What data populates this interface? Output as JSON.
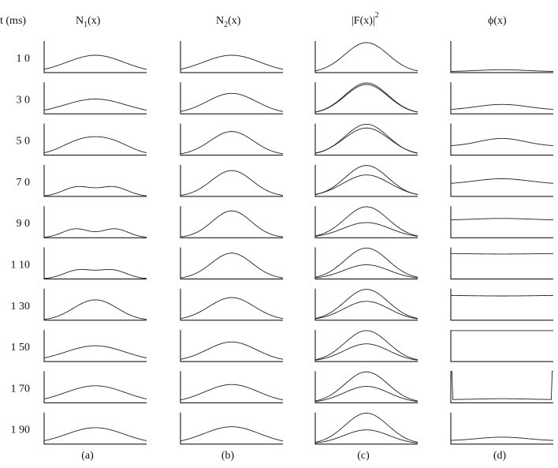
{
  "chart_data": {
    "type": "line",
    "layout": "small-multiples grid",
    "row_header": "t (ms)",
    "row_labels": [
      "1 0",
      "3 0",
      "5 0",
      "7 0",
      "9 0",
      "1 10",
      "1 30",
      "1 50",
      "1 70",
      "1 90"
    ],
    "columns": [
      {
        "title_base": "N",
        "title_sub": "1",
        "title_rest": "(x)",
        "panel_label": "(a)",
        "rows": [
          {
            "series": [
              {
                "profile": [
                  {
                    "a": 0.55,
                    "mu": 0,
                    "w": 0.55
                  }
                ]
              }
            ]
          },
          {
            "series": [
              {
                "profile": [
                  {
                    "a": 0.47,
                    "mu": 0,
                    "w": 0.6
                  }
                ]
              }
            ]
          },
          {
            "series": [
              {
                "profile": [
                  {
                    "a": 0.4,
                    "mu": -0.3,
                    "w": 0.38
                  },
                  {
                    "a": 0.4,
                    "mu": 0.3,
                    "w": 0.38
                  }
                ]
              }
            ]
          },
          {
            "series": [
              {
                "profile": [
                  {
                    "a": 0.3,
                    "mu": -0.35,
                    "w": 0.28
                  },
                  {
                    "a": 0.3,
                    "mu": 0.35,
                    "w": 0.28
                  }
                ]
              }
            ]
          },
          {
            "series": [
              {
                "profile": [
                  {
                    "a": 0.28,
                    "mu": -0.38,
                    "w": 0.26
                  },
                  {
                    "a": 0.28,
                    "mu": 0.38,
                    "w": 0.26
                  }
                ]
              }
            ]
          },
          {
            "series": [
              {
                "profile": [
                  {
                    "a": 0.28,
                    "mu": -0.33,
                    "w": 0.28
                  },
                  {
                    "a": 0.28,
                    "mu": 0.33,
                    "w": 0.28
                  }
                ]
              }
            ]
          },
          {
            "series": [
              {
                "profile": [
                  {
                    "a": 0.38,
                    "mu": -0.2,
                    "w": 0.35
                  },
                  {
                    "a": 0.38,
                    "mu": 0.2,
                    "w": 0.35
                  }
                ]
              }
            ]
          },
          {
            "series": [
              {
                "profile": [
                  {
                    "a": 0.5,
                    "mu": 0,
                    "w": 0.58
                  }
                ]
              }
            ]
          },
          {
            "series": [
              {
                "profile": [
                  {
                    "a": 0.54,
                    "mu": 0,
                    "w": 0.58
                  }
                ]
              }
            ]
          },
          {
            "series": [
              {
                "profile": [
                  {
                    "a": 0.52,
                    "mu": 0,
                    "w": 0.56
                  }
                ]
              }
            ]
          }
        ]
      },
      {
        "title_base": "N",
        "title_sub": "2",
        "title_rest": "(x)",
        "panel_label": "(b)",
        "rows": [
          {
            "series": [
              {
                "profile": [
                  {
                    "a": 0.55,
                    "mu": 0,
                    "w": 0.55
                  }
                ]
              }
            ]
          },
          {
            "series": [
              {
                "profile": [
                  {
                    "a": 0.65,
                    "mu": 0,
                    "w": 0.48
                  }
                ]
              }
            ]
          },
          {
            "series": [
              {
                "profile": [
                  {
                    "a": 0.75,
                    "mu": 0,
                    "w": 0.42
                  }
                ]
              }
            ]
          },
          {
            "series": [
              {
                "profile": [
                  {
                    "a": 0.82,
                    "mu": 0,
                    "w": 0.4
                  }
                ]
              }
            ]
          },
          {
            "series": [
              {
                "profile": [
                  {
                    "a": 0.85,
                    "mu": 0,
                    "w": 0.38
                  }
                ]
              }
            ]
          },
          {
            "series": [
              {
                "profile": [
                  {
                    "a": 0.82,
                    "mu": 0,
                    "w": 0.4
                  }
                ]
              }
            ]
          },
          {
            "series": [
              {
                "profile": [
                  {
                    "a": 0.72,
                    "mu": 0,
                    "w": 0.44
                  }
                ]
              }
            ]
          },
          {
            "series": [
              {
                "profile": [
                  {
                    "a": 0.62,
                    "mu": 0,
                    "w": 0.48
                  }
                ]
              }
            ]
          },
          {
            "series": [
              {
                "profile": [
                  {
                    "a": 0.58,
                    "mu": 0,
                    "w": 0.52
                  }
                ]
              }
            ]
          },
          {
            "series": [
              {
                "profile": [
                  {
                    "a": 0.55,
                    "mu": 0,
                    "w": 0.54
                  }
                ]
              }
            ]
          }
        ]
      },
      {
        "title_text": "|F(x)|",
        "title_sup": "2",
        "panel_label": "(c)",
        "rows": [
          {
            "series": [
              {
                "profile": [
                  {
                    "a": 0.95,
                    "mu": 0,
                    "w": 0.42
                  }
                ]
              }
            ]
          },
          {
            "series": [
              {
                "profile": [
                  {
                    "a": 0.98,
                    "mu": 0,
                    "w": 0.42
                  }
                ]
              },
              {
                "profile": [
                  {
                    "a": 0.93,
                    "mu": 0,
                    "w": 0.42
                  }
                ]
              }
            ]
          },
          {
            "series": [
              {
                "profile": [
                  {
                    "a": 0.98,
                    "mu": 0,
                    "w": 0.42
                  }
                ]
              },
              {
                "profile": [
                  {
                    "a": 0.86,
                    "mu": 0,
                    "w": 0.44
                  }
                ]
              }
            ]
          },
          {
            "series": [
              {
                "profile": [
                  {
                    "a": 0.98,
                    "mu": 0,
                    "w": 0.42
                  }
                ]
              },
              {
                "profile": [
                  {
                    "a": 0.68,
                    "mu": 0,
                    "w": 0.46
                  }
                ]
              }
            ]
          },
          {
            "series": [
              {
                "profile": [
                  {
                    "a": 0.98,
                    "mu": 0,
                    "w": 0.42
                  }
                ]
              },
              {
                "profile": [
                  {
                    "a": 0.48,
                    "mu": 0,
                    "w": 0.46
                  }
                ]
              }
            ]
          },
          {
            "series": [
              {
                "profile": [
                  {
                    "a": 0.98,
                    "mu": 0,
                    "w": 0.42
                  }
                ]
              },
              {
                "profile": [
                  {
                    "a": 0.45,
                    "mu": 0,
                    "w": 0.44
                  }
                ]
              }
            ]
          },
          {
            "series": [
              {
                "profile": [
                  {
                    "a": 0.98,
                    "mu": 0,
                    "w": 0.42
                  }
                ]
              },
              {
                "profile": [
                  {
                    "a": 0.6,
                    "mu": 0,
                    "w": 0.44
                  }
                ]
              }
            ]
          },
          {
            "series": [
              {
                "profile": [
                  {
                    "a": 0.98,
                    "mu": 0,
                    "w": 0.42
                  }
                ]
              },
              {
                "profile": [
                  {
                    "a": 0.56,
                    "mu": 0,
                    "w": 0.44
                  }
                ]
              }
            ]
          },
          {
            "series": [
              {
                "profile": [
                  {
                    "a": 0.98,
                    "mu": 0,
                    "w": 0.42
                  }
                ]
              },
              {
                "profile": [
                  {
                    "a": 0.52,
                    "mu": 0,
                    "w": 0.44
                  }
                ]
              }
            ]
          },
          {
            "series": [
              {
                "profile": [
                  {
                    "a": 0.98,
                    "mu": 0,
                    "w": 0.42
                  }
                ]
              },
              {
                "profile": [
                  {
                    "a": 0.45,
                    "mu": 0,
                    "w": 0.44
                  }
                ]
              }
            ]
          }
        ]
      },
      {
        "title_text": "ϕ(x)",
        "panel_label": "(d)",
        "rows": [
          {
            "series": [
              {
                "baseline": 0.03,
                "profile": [
                  {
                    "a": 0.06,
                    "mu": 0,
                    "w": 0.5
                  }
                ]
              }
            ]
          },
          {
            "series": [
              {
                "baseline": 0.12,
                "profile": [
                  {
                    "a": 0.18,
                    "mu": 0,
                    "w": 0.5
                  }
                ]
              }
            ]
          },
          {
            "series": [
              {
                "baseline": 0.28,
                "profile": [
                  {
                    "a": 0.25,
                    "mu": 0,
                    "w": 0.45
                  }
                ]
              }
            ]
          },
          {
            "series": [
              {
                "baseline": 0.38,
                "profile": [
                  {
                    "a": 0.18,
                    "mu": 0,
                    "w": 0.55
                  }
                ]
              }
            ]
          },
          {
            "series": [
              {
                "baseline": 0.55,
                "profile": [
                  {
                    "a": 0.06,
                    "mu": 0,
                    "w": 0.6
                  }
                ]
              }
            ]
          },
          {
            "series": [
              {
                "baseline": 0.82,
                "profile": [
                  {
                    "a": -0.03,
                    "mu": 0,
                    "w": 0.8
                  }
                ]
              }
            ]
          },
          {
            "series": [
              {
                "baseline": 0.8,
                "profile": [
                  {
                    "a": -0.03,
                    "mu": 0,
                    "w": 0.8
                  }
                ]
              }
            ]
          },
          {
            "series": [
              {
                "baseline": 0.98,
                "profile": []
              }
            ]
          },
          {
            "series": [
              {
                "baseline": 0.1,
                "profile": [
                  {
                    "a": 0.03,
                    "mu": 0,
                    "w": 0.5
                  }
                ],
                "edge_spikes": 1.0
              }
            ]
          },
          {
            "series": [
              {
                "baseline": 0.1,
                "profile": [
                  {
                    "a": 0.12,
                    "mu": 0,
                    "w": 0.5
                  }
                ]
              }
            ]
          }
        ]
      }
    ]
  }
}
